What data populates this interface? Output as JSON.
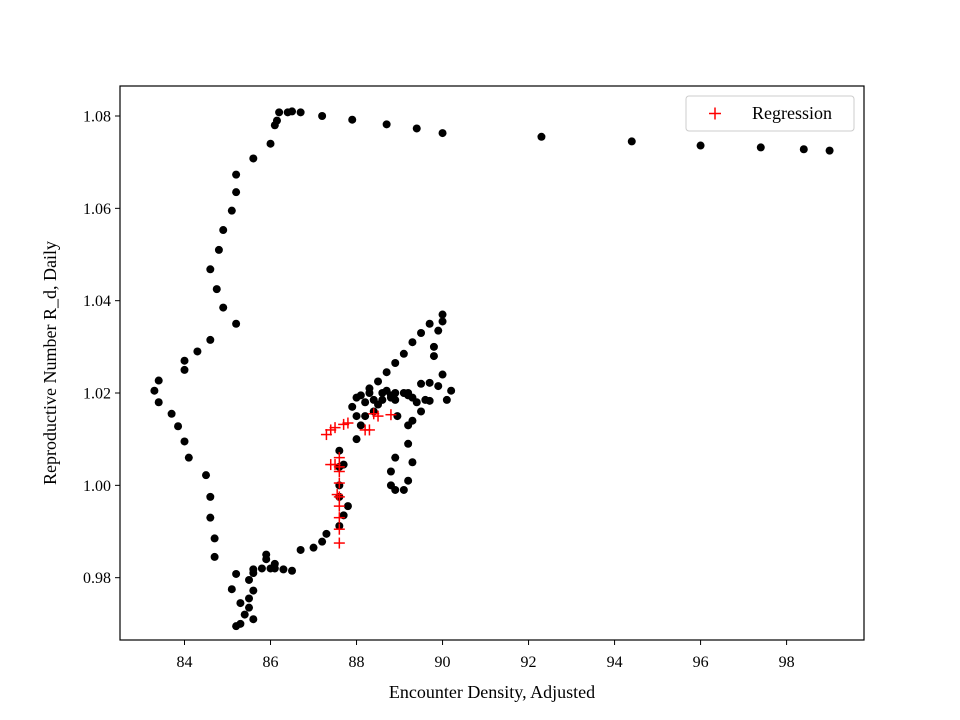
{
  "chart_data": {
    "type": "scatter",
    "title": "",
    "xlabel": "Encounter Density, Adjusted",
    "ylabel": "Reproductive Number R_d, Daily",
    "xlim": [
      82.5,
      99.8
    ],
    "ylim": [
      0.9665,
      1.0865
    ],
    "xticks": [
      84,
      86,
      88,
      90,
      92,
      94,
      96,
      98
    ],
    "yticks": [
      0.98,
      1.0,
      1.02,
      1.04,
      1.06,
      1.08
    ],
    "ytick_labels": [
      "0.98",
      "1.00",
      "1.02",
      "1.04",
      "1.06",
      "1.08"
    ],
    "grid": false,
    "legend": {
      "position": "top-right",
      "entries": [
        "Regression"
      ]
    },
    "series": [
      {
        "marker": "dot",
        "color": "#000000",
        "points": [
          [
            99.0,
            1.0725
          ],
          [
            98.4,
            1.0728
          ],
          [
            97.4,
            1.0732
          ],
          [
            96.0,
            1.0736
          ],
          [
            94.4,
            1.0745
          ],
          [
            92.3,
            1.0755
          ],
          [
            90.0,
            1.0763
          ],
          [
            89.4,
            1.0773
          ],
          [
            88.7,
            1.0782
          ],
          [
            87.9,
            1.0792
          ],
          [
            87.2,
            1.08
          ],
          [
            86.7,
            1.0808
          ],
          [
            86.5,
            1.081
          ],
          [
            86.4,
            1.0808
          ],
          [
            86.2,
            1.0808
          ],
          [
            86.15,
            1.079
          ],
          [
            86.1,
            1.078
          ],
          [
            86.0,
            1.074
          ],
          [
            85.6,
            1.0708
          ],
          [
            85.2,
            1.0673
          ],
          [
            85.2,
            1.0635
          ],
          [
            85.1,
            1.0595
          ],
          [
            84.9,
            1.0553
          ],
          [
            84.8,
            1.051
          ],
          [
            84.6,
            1.0468
          ],
          [
            84.75,
            1.0425
          ],
          [
            84.9,
            1.0385
          ],
          [
            85.2,
            1.035
          ],
          [
            84.6,
            1.0315
          ],
          [
            84.3,
            1.029
          ],
          [
            84.0,
            1.027
          ],
          [
            84.0,
            1.025
          ],
          [
            83.4,
            1.0227
          ],
          [
            83.3,
            1.0205
          ],
          [
            83.4,
            1.018
          ],
          [
            83.7,
            1.0155
          ],
          [
            83.85,
            1.0128
          ],
          [
            84.0,
            1.0095
          ],
          [
            84.1,
            1.006
          ],
          [
            84.5,
            1.0022
          ],
          [
            84.6,
            0.9975
          ],
          [
            84.6,
            0.993
          ],
          [
            84.7,
            0.9885
          ],
          [
            84.7,
            0.9845
          ],
          [
            85.2,
            0.9808
          ],
          [
            85.1,
            0.9775
          ],
          [
            85.3,
            0.9745
          ],
          [
            85.5,
            0.9735
          ],
          [
            85.4,
            0.972
          ],
          [
            85.6,
            0.971
          ],
          [
            85.3,
            0.97
          ],
          [
            85.2,
            0.9695
          ],
          [
            85.5,
            0.9755
          ],
          [
            85.6,
            0.9772
          ],
          [
            85.5,
            0.9795
          ],
          [
            85.6,
            0.981
          ],
          [
            85.6,
            0.9818
          ],
          [
            85.8,
            0.982
          ],
          [
            85.9,
            0.984
          ],
          [
            85.9,
            0.985
          ],
          [
            86.1,
            0.983
          ],
          [
            86.1,
            0.982
          ],
          [
            86.0,
            0.982
          ],
          [
            86.3,
            0.9818
          ],
          [
            86.5,
            0.9815
          ],
          [
            86.7,
            0.986
          ],
          [
            87.0,
            0.9865
          ],
          [
            87.2,
            0.9878
          ],
          [
            87.3,
            0.9895
          ],
          [
            87.6,
            0.9912
          ],
          [
            87.7,
            0.9935
          ],
          [
            87.8,
            0.9955
          ],
          [
            87.6,
            0.9975
          ],
          [
            87.6,
            1.0
          ],
          [
            87.6,
            1.004
          ],
          [
            87.7,
            1.0045
          ],
          [
            87.6,
            1.0075
          ],
          [
            88.0,
            1.01
          ],
          [
            88.1,
            1.013
          ],
          [
            88.2,
            1.015
          ],
          [
            88.4,
            1.0185
          ],
          [
            88.6,
            1.0185
          ],
          [
            88.8,
            1.0195
          ],
          [
            88.9,
            1.0185
          ],
          [
            88.95,
            1.015
          ],
          [
            88.9,
            1.006
          ],
          [
            88.8,
            1.003
          ],
          [
            88.8,
            1.0
          ],
          [
            88.9,
            0.999
          ],
          [
            89.1,
            0.999
          ],
          [
            89.2,
            1.001
          ],
          [
            89.3,
            1.005
          ],
          [
            89.2,
            1.009
          ],
          [
            89.2,
            1.013
          ],
          [
            89.3,
            1.014
          ],
          [
            89.5,
            1.016
          ],
          [
            89.4,
            1.018
          ],
          [
            89.7,
            1.0183
          ],
          [
            90.1,
            1.0185
          ],
          [
            90.2,
            1.0205
          ],
          [
            90.0,
            1.024
          ],
          [
            89.8,
            1.028
          ],
          [
            89.8,
            1.03
          ],
          [
            89.9,
            1.0335
          ],
          [
            90.0,
            1.0355
          ],
          [
            90.0,
            1.037
          ],
          [
            89.7,
            1.035
          ],
          [
            89.5,
            1.033
          ],
          [
            89.3,
            1.031
          ],
          [
            89.1,
            1.0285
          ],
          [
            88.9,
            1.0265
          ],
          [
            88.7,
            1.0245
          ],
          [
            88.5,
            1.0225
          ],
          [
            88.3,
            1.021
          ],
          [
            88.1,
            1.0195
          ],
          [
            88.0,
            1.019
          ],
          [
            87.9,
            1.017
          ],
          [
            88.0,
            1.015
          ],
          [
            88.4,
            1.016
          ],
          [
            88.5,
            1.0175
          ],
          [
            88.6,
            1.02
          ],
          [
            88.7,
            1.0205
          ],
          [
            88.9,
            1.02
          ],
          [
            89.1,
            1.02
          ],
          [
            89.2,
            1.0195
          ],
          [
            89.3,
            1.019
          ],
          [
            89.5,
            1.022
          ],
          [
            89.7,
            1.0222
          ],
          [
            89.9,
            1.0215
          ],
          [
            89.6,
            1.0185
          ],
          [
            88.3,
            1.02
          ],
          [
            88.2,
            1.018
          ],
          [
            89.2,
            1.02
          ],
          [
            88.8,
            1.019
          ]
        ]
      },
      {
        "name": "Regression",
        "marker": "plus",
        "color": "#ff0000",
        "points": [
          [
            87.3,
            1.011
          ],
          [
            87.4,
            1.012
          ],
          [
            87.5,
            1.0125
          ],
          [
            87.7,
            1.0132
          ],
          [
            87.8,
            1.0135
          ],
          [
            88.2,
            1.012
          ],
          [
            88.3,
            1.012
          ],
          [
            88.4,
            1.0155
          ],
          [
            88.5,
            1.015
          ],
          [
            88.8,
            1.0153
          ],
          [
            87.4,
            1.0045
          ],
          [
            87.6,
            1.004
          ],
          [
            87.5,
            1.0045
          ],
          [
            87.6,
            1.003
          ],
          [
            87.6,
            1.006
          ],
          [
            87.6,
            1.0005
          ],
          [
            87.55,
            0.998
          ],
          [
            87.6,
            0.9975
          ],
          [
            87.6,
            0.9955
          ],
          [
            87.6,
            0.993
          ],
          [
            87.6,
            0.9905
          ],
          [
            87.6,
            0.9875
          ]
        ]
      }
    ]
  }
}
